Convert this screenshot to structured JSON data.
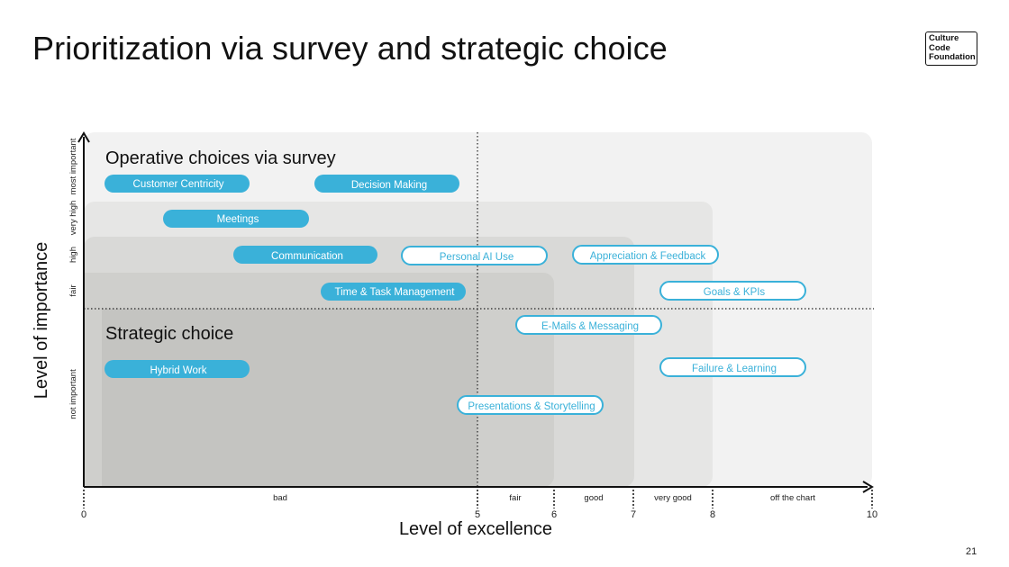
{
  "title": "Prioritization via survey and strategic choice",
  "logo": {
    "line1": "Culture",
    "line2": "Code",
    "line3": "Foundation"
  },
  "page_number": "21",
  "colors": {
    "pill_fill": "#3ab1d9",
    "pill_outline": "#3ab1d9",
    "region_outer": "#f2f2f2",
    "region_2": "#e6e6e5",
    "region_3": "#d9d9d7",
    "region_4": "#c4c4c1"
  },
  "diagram": {
    "x_axis": {
      "title": "Level of excellence",
      "ticks": [
        "0",
        "5",
        "6",
        "7",
        "8",
        "10"
      ],
      "band_labels": [
        "bad",
        "fair",
        "good",
        "very good",
        "off the chart"
      ]
    },
    "y_axis": {
      "title": "Level of importance",
      "band_labels": [
        "most important",
        "very high",
        "high",
        "fair",
        "not important"
      ]
    },
    "regions": {
      "operative": "Operative choices via survey",
      "strategic": "Strategic choice"
    },
    "items": [
      {
        "label": "Customer Centricity",
        "style": "filled"
      },
      {
        "label": "Decision Making",
        "style": "filled"
      },
      {
        "label": "Meetings",
        "style": "filled"
      },
      {
        "label": "Communication",
        "style": "filled"
      },
      {
        "label": "Personal AI Use",
        "style": "outline"
      },
      {
        "label": "Appreciation & Feedback",
        "style": "outline"
      },
      {
        "label": "Time & Task Management",
        "style": "filled"
      },
      {
        "label": "Goals & KPIs",
        "style": "outline"
      },
      {
        "label": "E-Mails & Messaging",
        "style": "outline"
      },
      {
        "label": "Hybrid Work",
        "style": "filled"
      },
      {
        "label": "Failure & Learning",
        "style": "outline"
      },
      {
        "label": "Presentations & Storytelling",
        "style": "outline"
      }
    ]
  }
}
